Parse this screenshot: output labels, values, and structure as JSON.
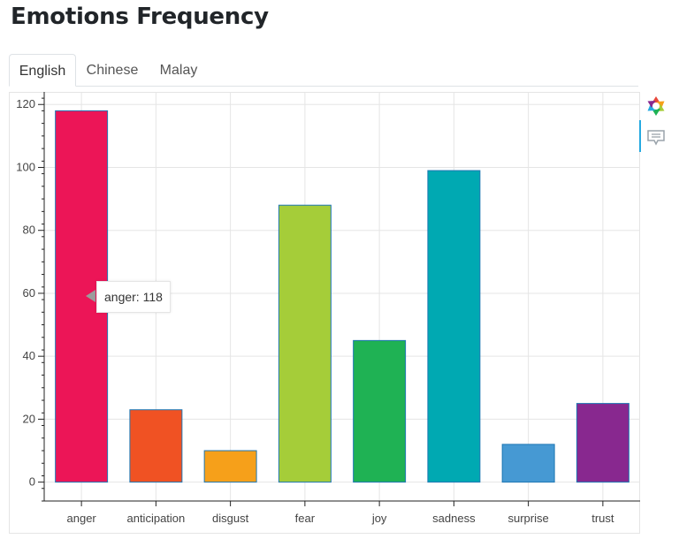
{
  "page": {
    "title": "Emotions Frequency"
  },
  "tabs": [
    {
      "label": "English",
      "active": true
    },
    {
      "label": "Chinese",
      "active": false
    },
    {
      "label": "Malay",
      "active": false
    }
  ],
  "toolbar": {
    "logo_icon": "bokeh-logo-icon",
    "hover_icon": "hover-tooltip-icon"
  },
  "tooltip": {
    "text": "anger: 118"
  },
  "chart_data": {
    "type": "bar",
    "title": "",
    "xlabel": "",
    "ylabel": "",
    "categories": [
      "anger",
      "anticipation",
      "disgust",
      "fear",
      "joy",
      "sadness",
      "surprise",
      "trust"
    ],
    "values": [
      118,
      23,
      10,
      88,
      45,
      99,
      12,
      25
    ],
    "colors": [
      "#ec1557",
      "#f05223",
      "#f6a01a",
      "#a5cd39",
      "#1fb254",
      "#00a9b2",
      "#4699d3",
      "#88288f"
    ],
    "ylim": [
      -6,
      124
    ],
    "yticks": [
      0,
      20,
      40,
      60,
      80,
      100,
      120
    ],
    "grid": true,
    "outline_color": "#1f77b4"
  }
}
